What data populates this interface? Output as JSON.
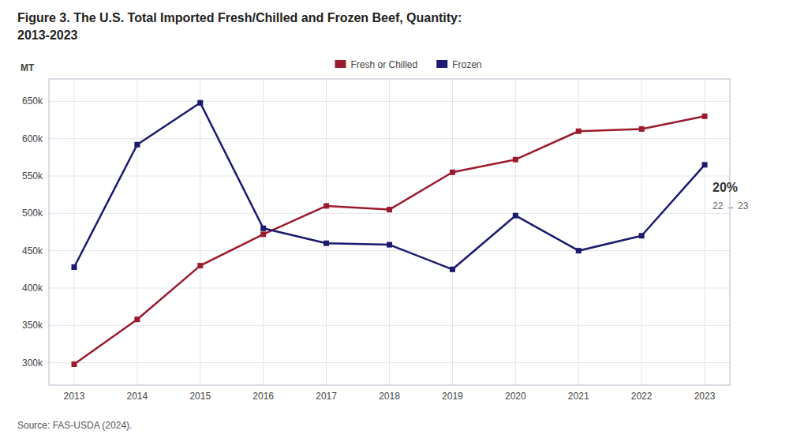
{
  "chart_data": {
    "type": "line",
    "title": "Figure 3. The U.S. Total Imported Fresh/Chilled and Frozen Beef, Quantity:",
    "subtitle": "2013-2023",
    "y_label": "MT",
    "x": [
      2013,
      2014,
      2015,
      2016,
      2017,
      2018,
      2019,
      2020,
      2021,
      2022,
      2023
    ],
    "series": [
      {
        "name": "Fresh or Chilled",
        "color": "#9b1b2e",
        "marker": "square",
        "values": [
          298000,
          358000,
          430000,
          472000,
          510000,
          505000,
          555000,
          572000,
          610000,
          613000,
          630000
        ]
      },
      {
        "name": "Frozen",
        "color": "#1a1a6e",
        "marker": "square",
        "values": [
          428000,
          592000,
          648000,
          480000,
          460000,
          458000,
          425000,
          497000,
          450000,
          470000,
          565000
        ]
      }
    ],
    "xlim": [
      2012.6,
      2023.4
    ],
    "xticks": [
      2013,
      2014,
      2015,
      2016,
      2017,
      2018,
      2019,
      2020,
      2021,
      2022,
      2023
    ],
    "ylim": [
      270000,
      680000
    ],
    "yticks": [
      {
        "value": 300000,
        "label": "300k"
      },
      {
        "value": 350000,
        "label": "350k"
      },
      {
        "value": 400000,
        "label": "400k"
      },
      {
        "value": 450000,
        "label": "450k"
      },
      {
        "value": 500000,
        "label": "500k"
      },
      {
        "value": 550000,
        "label": "550k"
      },
      {
        "value": 600000,
        "label": "600k"
      },
      {
        "value": 650000,
        "label": "650k"
      }
    ],
    "grid": true,
    "legend": "top",
    "annotations": [
      "20%",
      "22 → 23"
    ],
    "source": "Source: FAS-USDA (2024)."
  }
}
